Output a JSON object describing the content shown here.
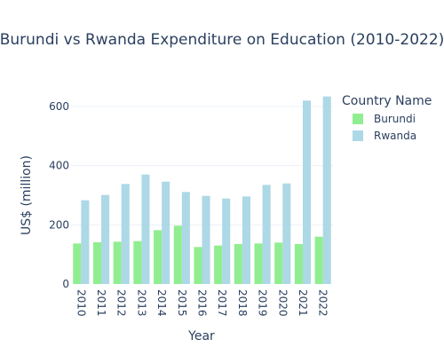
{
  "chart_data": {
    "type": "bar",
    "title": "Burundi vs Rwanda Expenditure on Education (2010-2022)",
    "xlabel": "Year",
    "ylabel": "US$ (million)",
    "categories": [
      "2010",
      "2011",
      "2012",
      "2013",
      "2014",
      "2015",
      "2016",
      "2017",
      "2018",
      "2019",
      "2020",
      "2021",
      "2022"
    ],
    "series": [
      {
        "name": "Burundi",
        "color": "#90ee90",
        "values": [
          137,
          141,
          143,
          145,
          182,
          197,
          125,
          130,
          135,
          137,
          140,
          135,
          160
        ]
      },
      {
        "name": "Rwanda",
        "color": "#add8e6",
        "values": [
          283,
          301,
          338,
          370,
          346,
          311,
          298,
          289,
          296,
          335,
          340,
          620,
          634
        ]
      }
    ],
    "ylim": [
      0,
      660
    ],
    "yticks": [
      0,
      200,
      400,
      600
    ],
    "grid": true,
    "legend": {
      "title": "Country Name",
      "placement": "right"
    }
  }
}
